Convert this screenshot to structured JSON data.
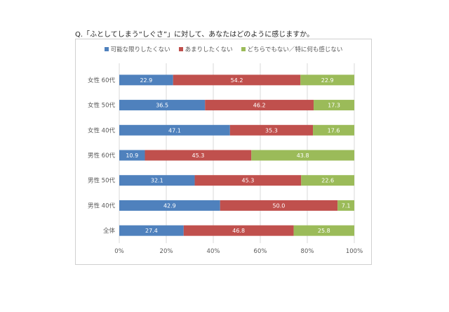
{
  "question": "Q.「ふとしてしまう“しぐさ”」に対して、あなたはどのように感じますか。",
  "colors": {
    "series1": "#4f81bd",
    "series2": "#c0504d",
    "series3": "#9bbb59",
    "grid": "#d9d9d9"
  },
  "chart_data": {
    "type": "bar",
    "orientation": "horizontal",
    "stacked": true,
    "legend_position": "top",
    "grid": true,
    "xlim": [
      0,
      100
    ],
    "x_tick_labels": [
      "0%",
      "20%",
      "40%",
      "60%",
      "80%",
      "100%"
    ],
    "categories": [
      "女性 60代",
      "女性 50代",
      "女性 40代",
      "男性 60代",
      "男性 50代",
      "男性 40代",
      "全体"
    ],
    "series": [
      {
        "name": "可能な限りしたくない",
        "values": [
          22.9,
          36.5,
          47.1,
          10.9,
          32.1,
          42.9,
          27.4
        ]
      },
      {
        "name": "あまりしたくない",
        "values": [
          54.2,
          46.2,
          35.3,
          45.3,
          45.3,
          50.0,
          46.8
        ]
      },
      {
        "name": "どちらでもない／特に何も感じない",
        "values": [
          22.9,
          17.3,
          17.6,
          43.8,
          22.6,
          7.1,
          25.8
        ]
      }
    ],
    "value_labels": [
      [
        "22.9",
        "36.5",
        "47.1",
        "10.9",
        "32.1",
        "42.9",
        "27.4"
      ],
      [
        "54.2",
        "46.2",
        "35.3",
        "45.3",
        "45.3",
        "50.0",
        "46.8"
      ],
      [
        "22.9",
        "17.3",
        "17.6",
        "43.8",
        "22.6",
        "7.1",
        "25.8"
      ]
    ]
  }
}
